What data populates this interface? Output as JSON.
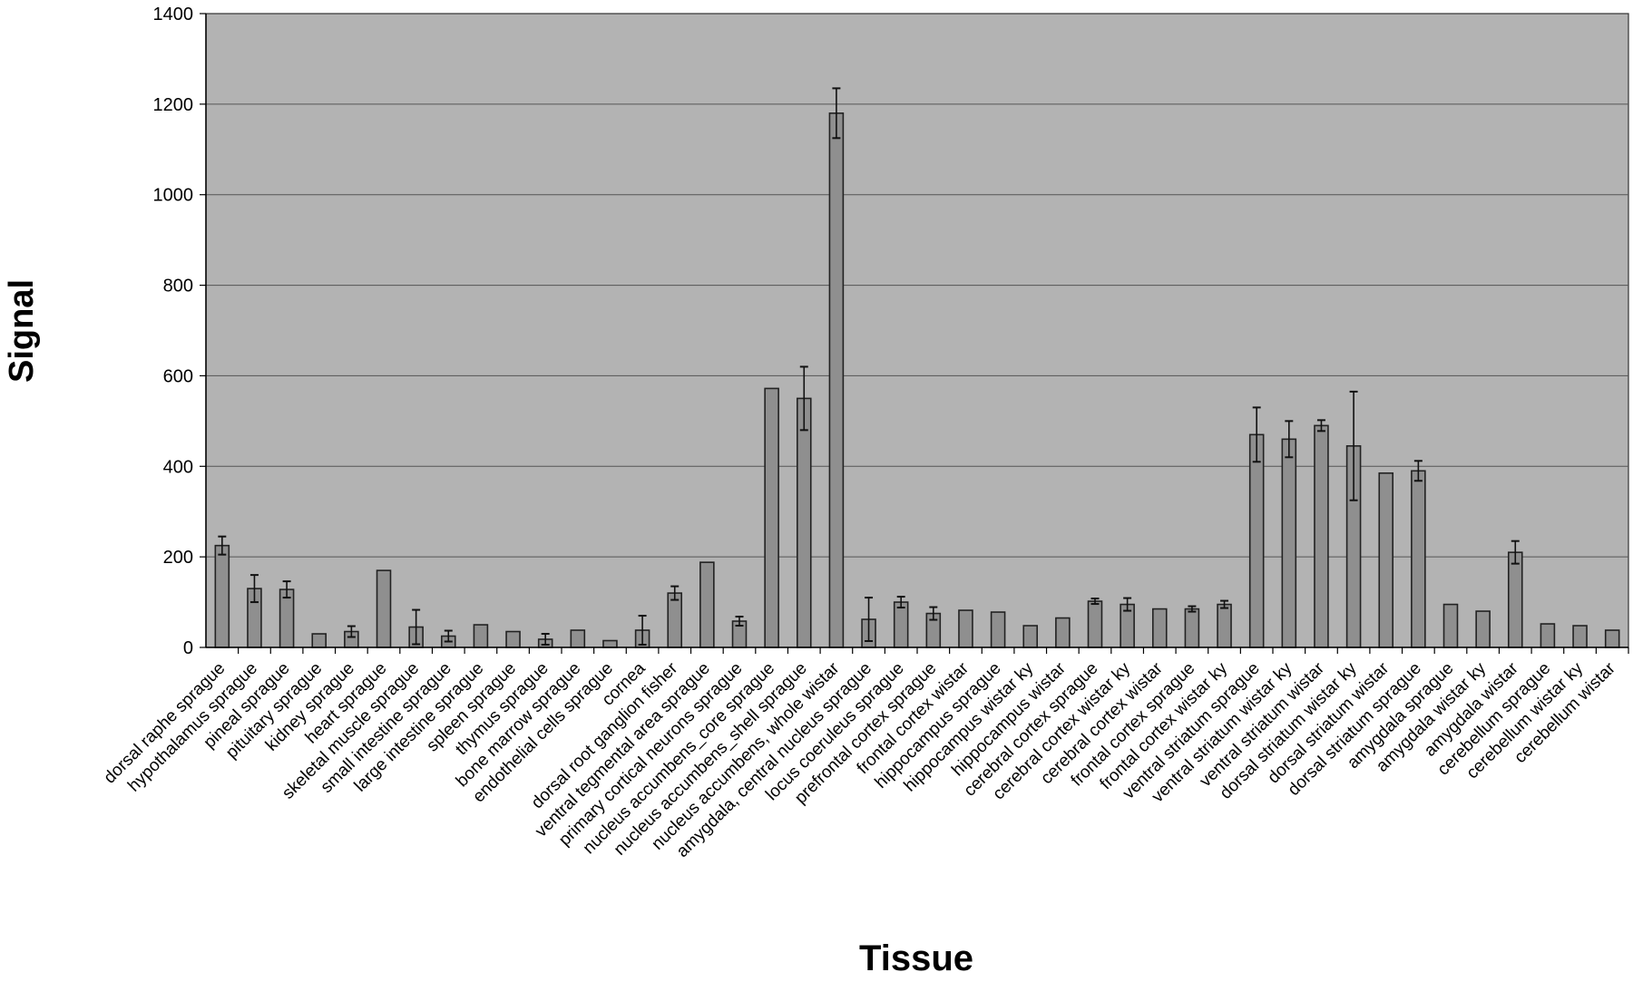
{
  "chart_data": {
    "type": "bar",
    "title": "",
    "xlabel": "Tissue",
    "ylabel": "Signal",
    "ylim": [
      0,
      1400
    ],
    "yticks": [
      "0",
      "200",
      "400",
      "600",
      "800",
      "1000",
      "1200",
      "1400"
    ],
    "grid": true,
    "legend": "none",
    "colors": {
      "plot_bg": "#b3b3b3",
      "bar_fill": "#8f8f8f",
      "bar_stroke": "#222222",
      "gridline": "#555555"
    },
    "categories": [
      "dorsal raphe sprague",
      "hypothalamus sprague",
      "pineal sprague",
      "pituitary sprague",
      "kidney sprague",
      "heart sprague",
      "skeletal muscle sprague",
      "small intestine sprague",
      "large intestine sprague",
      "spleen sprague",
      "thymus sprague",
      "bone marrow sprague",
      "endothelial cells sprague",
      "cornea",
      "dorsal root ganglion fisher",
      "ventral tegmental area sprague",
      "primary cortical neurons sprague",
      "nucleus accumbens_core sprague",
      "nucleus accumbens_shell sprague",
      "nucleus accumbens, whole wistar",
      "amygdala, central nucleus sprague",
      "locus coeruleus sprague",
      "prefrontal cortex sprague",
      "frontal cortex wistar",
      "hippocampus sprague",
      "hippocampus wistar ky",
      "hippocampus wistar",
      "cerebral cortex sprague",
      "cerebral cortex wistar ky",
      "cerebral cortex wistar",
      "frontal cortex sprague",
      "frontal cortex wistar ky",
      "ventral striatum sprague",
      "ventral striatum wistar ky",
      "ventral striatum wistar",
      "dorsal striatum wistar ky",
      "dorsal striatum wistar",
      "dorsal striatum sprague",
      "amygdala sprague",
      "amygdala wistar ky",
      "amygdala wistar",
      "cerebellum sprague",
      "cerebellum wistar ky",
      "cerebellum wistar"
    ],
    "values": [
      225,
      130,
      128,
      30,
      35,
      170,
      45,
      25,
      50,
      35,
      18,
      38,
      15,
      38,
      120,
      188,
      58,
      572,
      550,
      1180,
      62,
      100,
      75,
      82,
      78,
      48,
      65,
      102,
      95,
      85,
      85,
      95,
      470,
      460,
      490,
      445,
      385,
      390,
      95,
      80,
      210,
      52,
      48,
      38
    ],
    "error": [
      20,
      30,
      18,
      3,
      12,
      3,
      38,
      12,
      3,
      3,
      12,
      3,
      3,
      32,
      15,
      3,
      10,
      3,
      70,
      55,
      48,
      12,
      14,
      4,
      3,
      3,
      3,
      6,
      14,
      4,
      6,
      8,
      60,
      40,
      12,
      120,
      3,
      22,
      3,
      3,
      25,
      3,
      3,
      3
    ]
  }
}
